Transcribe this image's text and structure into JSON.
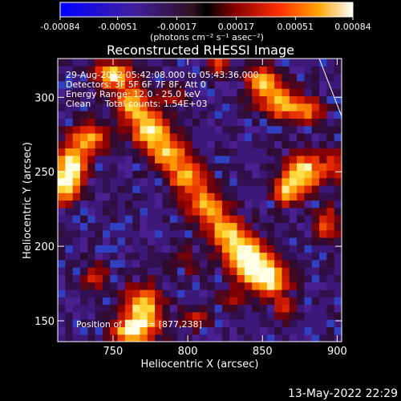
{
  "chart_data": {
    "type": "heatmap",
    "title": "Reconstructed RHESSI Image",
    "xlabel": "Heliocentric X (arcsec)",
    "ylabel": "Heliocentric Y (arcsec)",
    "xlim": [
      713,
      903
    ],
    "ylim": [
      136,
      326
    ],
    "x_ticks": [
      750,
      800,
      850,
      900
    ],
    "y_ticks": [
      150,
      200,
      250,
      300
    ],
    "colorbar": {
      "ticks": [
        "-0.00084",
        "-0.00051",
        "-0.00017",
        "0.00017",
        "0.00051",
        "0.00084"
      ],
      "unit_label": "(photons cm⁻² s⁻¹ asec⁻²)",
      "range": [
        -0.00084,
        0.00084
      ]
    },
    "annotations": [
      "29-Aug-2012 05:42:08.000 to 05:43:36.000",
      "Detectors: 3F 5F 6F 7F 8F, Att 0",
      "Energy Range: 12.0 - 25.0 keV",
      "Clean     Total counts: 1.54E+03"
    ],
    "peak_label": "Position of Peak = [877,238]",
    "peak": [
      877,
      238
    ],
    "features": [
      {
        "x": 750,
        "y": 315,
        "w": 8,
        "h": 6,
        "angle": -35,
        "v": 0.00084
      },
      {
        "x": 763,
        "y": 296,
        "w": 8,
        "h": 8,
        "v": 0.00075
      },
      {
        "x": 775,
        "y": 278,
        "w": 9,
        "h": 8,
        "v": 0.0008
      },
      {
        "x": 788,
        "y": 262,
        "w": 9,
        "h": 7,
        "v": 0.0007
      },
      {
        "x": 800,
        "y": 246,
        "w": 9,
        "h": 7,
        "v": 0.00065
      },
      {
        "x": 812,
        "y": 228,
        "w": 9,
        "h": 7,
        "v": 0.0007
      },
      {
        "x": 825,
        "y": 212,
        "w": 9,
        "h": 7,
        "v": 0.0006
      },
      {
        "x": 836,
        "y": 198,
        "w": 10,
        "h": 8,
        "v": 0.0007
      },
      {
        "x": 845,
        "y": 185,
        "w": 10,
        "h": 8,
        "v": 0.0008
      },
      {
        "x": 856,
        "y": 176,
        "w": 9,
        "h": 7,
        "v": 0.0006
      },
      {
        "x": 735,
        "y": 273,
        "w": 8,
        "h": 7,
        "v": 0.00065
      },
      {
        "x": 722,
        "y": 255,
        "w": 7,
        "h": 10,
        "v": 0.0008
      },
      {
        "x": 718,
        "y": 240,
        "w": 6,
        "h": 8,
        "v": 0.0007
      },
      {
        "x": 850,
        "y": 310,
        "w": 8,
        "h": 7,
        "v": 0.0007
      },
      {
        "x": 862,
        "y": 296,
        "w": 9,
        "h": 8,
        "v": 0.0006
      },
      {
        "x": 880,
        "y": 292,
        "w": 8,
        "h": 6,
        "v": 0.00055
      },
      {
        "x": 877,
        "y": 250,
        "w": 9,
        "h": 9,
        "v": 0.00084
      },
      {
        "x": 866,
        "y": 236,
        "w": 6,
        "h": 6,
        "v": 0.0006
      },
      {
        "x": 820,
        "y": 322,
        "w": 5,
        "h": 4,
        "v": 0.0005
      },
      {
        "x": 770,
        "y": 156,
        "w": 9,
        "h": 12,
        "v": 0.0008
      },
      {
        "x": 760,
        "y": 142,
        "w": 8,
        "h": 6,
        "v": 0.0006
      },
      {
        "x": 738,
        "y": 180,
        "w": 6,
        "h": 6,
        "v": 0.0004
      },
      {
        "x": 805,
        "y": 152,
        "w": 6,
        "h": 5,
        "v": 0.0004
      },
      {
        "x": 830,
        "y": 165,
        "w": 6,
        "h": 5,
        "v": 0.0003
      },
      {
        "x": 893,
        "y": 215,
        "w": 6,
        "h": 8,
        "v": 0.0005
      },
      {
        "x": 898,
        "y": 255,
        "w": 5,
        "h": 7,
        "v": 0.00045
      },
      {
        "x": 800,
        "y": 190,
        "w": 6,
        "h": 6,
        "v": 0.00025
      },
      {
        "x": 790,
        "y": 300,
        "w": 6,
        "h": 6,
        "v": 0.00025
      },
      {
        "x": 865,
        "y": 158,
        "w": 5,
        "h": 5,
        "v": 0.0004
      }
    ]
  },
  "footer": {
    "date_stamp": "13-May-2022 22:29"
  }
}
